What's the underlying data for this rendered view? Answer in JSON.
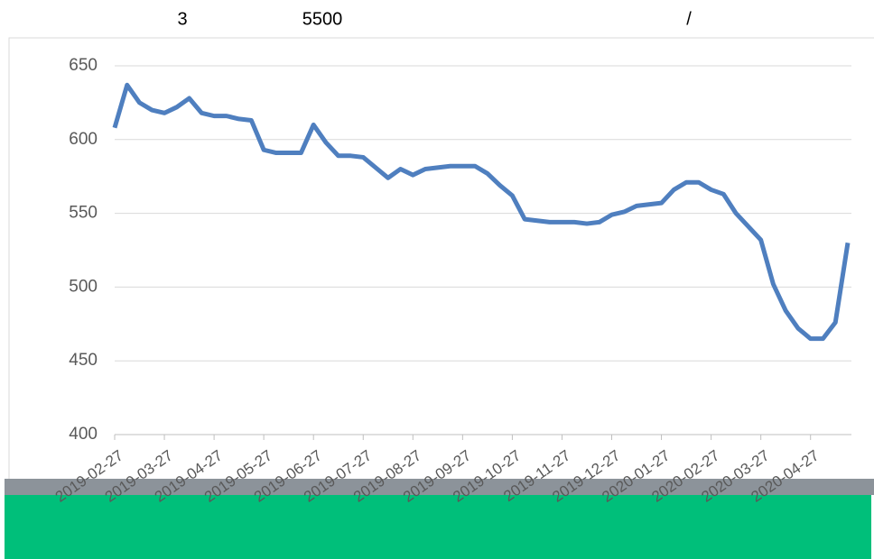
{
  "chart_data": {
    "type": "line",
    "title_parts": [
      "3",
      "5500",
      "/"
    ],
    "categories": [
      "2019-02-27",
      null,
      null,
      null,
      "2019-03-27",
      null,
      null,
      null,
      "2019-04-27",
      null,
      null,
      null,
      "2019-05-27",
      null,
      null,
      null,
      "2019-06-27",
      null,
      null,
      null,
      "2019-07-27",
      null,
      null,
      null,
      "2019-08-27",
      null,
      null,
      null,
      "2019-09-27",
      null,
      null,
      null,
      "2019-10-27",
      null,
      null,
      null,
      "2019-11-27",
      null,
      null,
      null,
      "2019-12-27",
      null,
      null,
      null,
      "2020-01-27",
      null,
      null,
      null,
      "2020-02-27",
      null,
      null,
      null,
      "2020-03-27",
      null,
      null,
      null,
      "2020-04-27",
      null,
      null,
      null
    ],
    "series": [
      {
        "color": "#4f7fbf",
        "values": [
          608,
          637,
          625,
          620,
          618,
          622,
          628,
          618,
          616,
          616,
          614,
          613,
          593,
          591,
          591,
          591,
          610,
          598,
          589,
          589,
          588,
          581,
          574,
          580,
          576,
          580,
          581,
          582,
          582,
          582,
          577,
          569,
          562,
          546,
          545,
          544,
          544,
          544,
          543,
          544,
          549,
          551,
          555,
          556,
          557,
          566,
          571,
          571,
          566,
          563,
          550,
          541,
          532,
          502,
          484,
          472,
          465,
          465,
          476,
          530
        ]
      }
    ],
    "ylim": [
      400,
      650
    ],
    "yticks": [
      400,
      450,
      500,
      550,
      600,
      650
    ],
    "grid": true
  }
}
